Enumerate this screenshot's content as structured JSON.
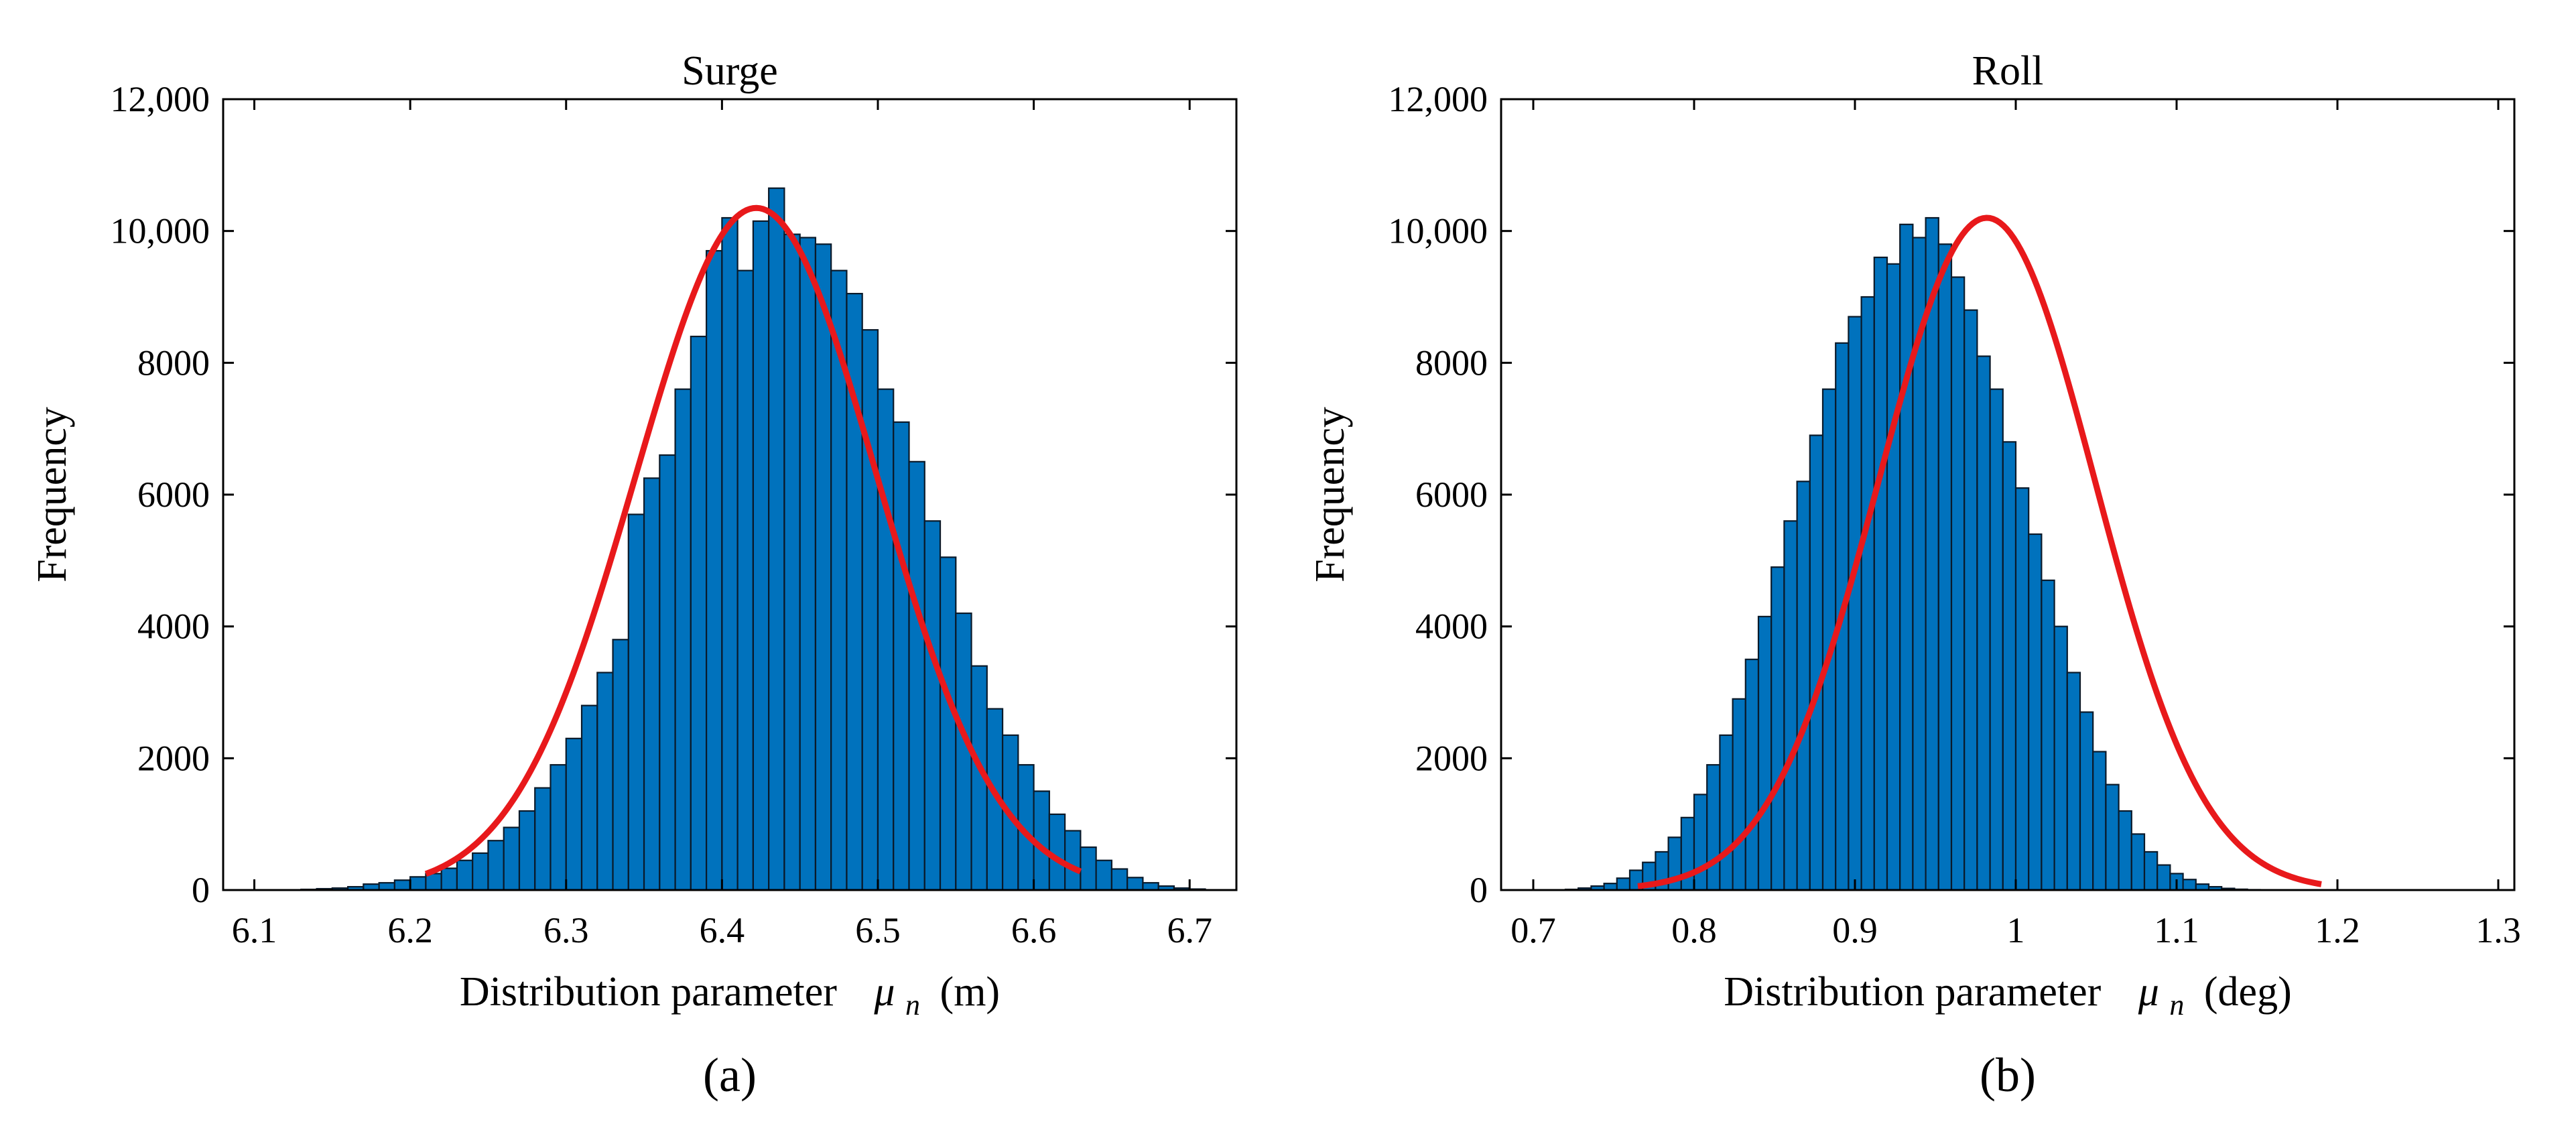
{
  "chart_data": [
    {
      "type": "bar",
      "title": "Surge",
      "panel_label": "(a)",
      "xlabel": "Distribution parameter",
      "xlabel_symbol": "μ",
      "xlabel_subscript": "n",
      "xlabel_unit": "(m)",
      "ylabel": "Frequency",
      "xlim": [
        6.08,
        6.73
      ],
      "ylim": [
        0,
        12000
      ],
      "xticks": [
        6.1,
        6.2,
        6.3,
        6.4,
        6.5,
        6.6,
        6.7
      ],
      "xtick_labels": [
        "6.1",
        "6.2",
        "6.3",
        "6.4",
        "6.5",
        "6.6",
        "6.7"
      ],
      "yticks": [
        0,
        2000,
        4000,
        6000,
        8000,
        10000,
        12000
      ],
      "ytick_labels": [
        "0",
        "2000",
        "4000",
        "6000",
        "8000",
        "10,000",
        "12,000"
      ],
      "grid": false,
      "bar_color": "#0072BD",
      "fit_color": "#E8191B",
      "bin_start": 6.13,
      "bin_width": 0.01,
      "values": [
        10,
        20,
        30,
        50,
        90,
        110,
        150,
        200,
        250,
        330,
        450,
        560,
        750,
        950,
        1200,
        1550,
        1900,
        2300,
        2800,
        3300,
        3800,
        5700,
        6250,
        6600,
        7600,
        8400,
        9700,
        10200,
        9400,
        10150,
        10650,
        9950,
        9900,
        9800,
        9400,
        9050,
        8500,
        7600,
        7100,
        6500,
        5600,
        5050,
        4200,
        3400,
        2750,
        2350,
        1900,
        1500,
        1150,
        900,
        650,
        450,
        320,
        190,
        110,
        60,
        30,
        15
      ],
      "fit": {
        "kind": "normal",
        "mean": 6.422,
        "sigma": 0.0775,
        "peak": 10350,
        "x_range": [
          6.21,
          6.63
        ]
      }
    },
    {
      "type": "bar",
      "title": "Roll",
      "panel_label": "(b)",
      "xlabel": "Distribution parameter",
      "xlabel_symbol": "μ",
      "xlabel_subscript": "n",
      "xlabel_unit": "(deg)",
      "ylabel": "Frequency",
      "xlim": [
        0.68,
        1.31
      ],
      "ylim": [
        0,
        12000
      ],
      "xticks": [
        0.7,
        0.8,
        0.9,
        1.0,
        1.1,
        1.2,
        1.3
      ],
      "xtick_labels": [
        "0.7",
        "0.8",
        "0.9",
        "1",
        "1.1",
        "1.2",
        "1.3"
      ],
      "yticks": [
        0,
        2000,
        4000,
        6000,
        8000,
        10000,
        12000
      ],
      "ytick_labels": [
        "0",
        "2000",
        "4000",
        "6000",
        "8000",
        "10,000",
        "12,000"
      ],
      "grid": false,
      "bar_color": "#0072BD",
      "fit_color": "#E8191B",
      "bin_start": 0.72,
      "bin_width": 0.008,
      "values": [
        10,
        30,
        60,
        100,
        180,
        300,
        420,
        580,
        800,
        1100,
        1450,
        1900,
        2350,
        2900,
        3500,
        4150,
        4900,
        5600,
        6200,
        6900,
        7600,
        8300,
        8700,
        9000,
        9600,
        9500,
        10100,
        9900,
        10200,
        9800,
        9300,
        8800,
        8100,
        7600,
        6800,
        6100,
        5400,
        4700,
        4000,
        3300,
        2700,
        2100,
        1600,
        1200,
        850,
        580,
        380,
        250,
        160,
        90,
        50,
        25,
        12,
        5
      ],
      "fit": {
        "kind": "normal",
        "mean": 0.982,
        "sigma": 0.0675,
        "peak": 10200,
        "x_range": [
          0.765,
          1.19
        ]
      }
    }
  ]
}
